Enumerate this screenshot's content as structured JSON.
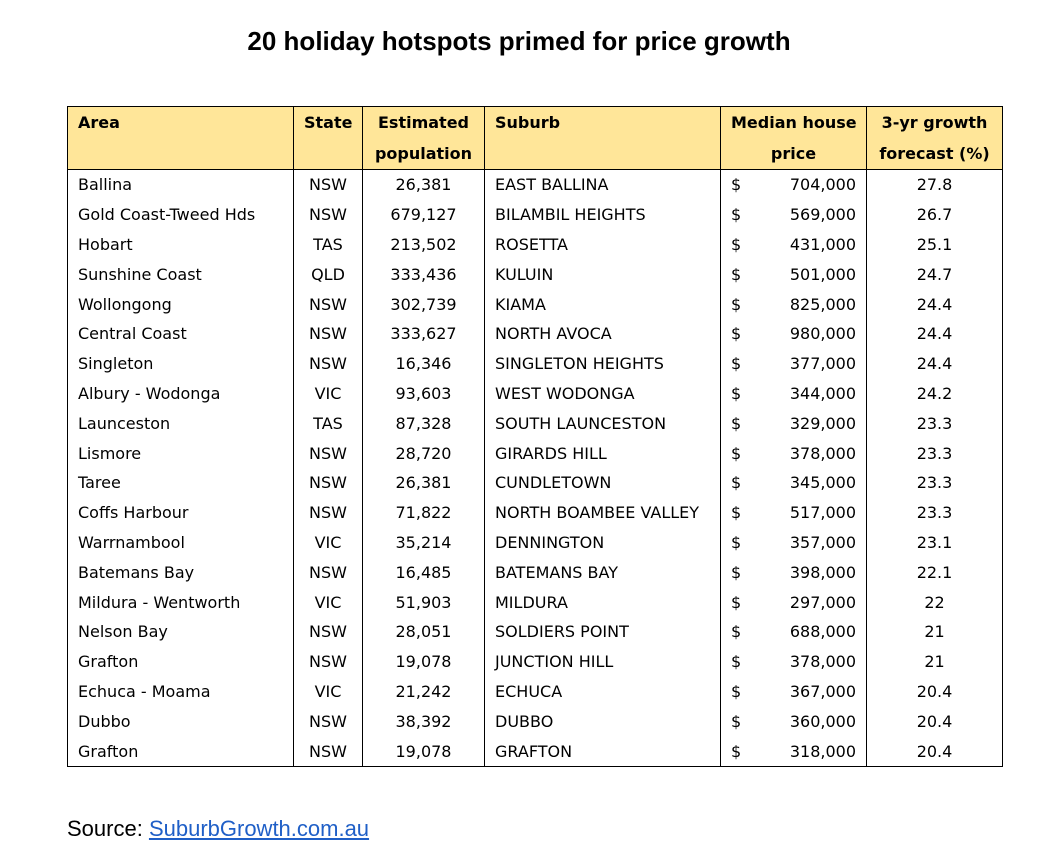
{
  "title": "20 holiday hotspots primed for price growth",
  "table": {
    "headers_row1": [
      "Area",
      "State",
      "Estimated",
      "Suburb",
      "Median house",
      "3-yr growth"
    ],
    "headers_row2": [
      "",
      "",
      "population",
      "",
      "price",
      "forecast (%)"
    ],
    "currency": "$",
    "rows": [
      {
        "area": "Ballina",
        "state": "NSW",
        "population": "26,381",
        "suburb": "EAST BALLINA",
        "price": "704,000",
        "growth": "27.8"
      },
      {
        "area": "Gold Coast-Tweed Hds",
        "state": "NSW",
        "population": "679,127",
        "suburb": "BILAMBIL HEIGHTS",
        "price": "569,000",
        "growth": "26.7"
      },
      {
        "area": "Hobart",
        "state": "TAS",
        "population": "213,502",
        "suburb": "ROSETTA",
        "price": "431,000",
        "growth": "25.1"
      },
      {
        "area": "Sunshine Coast",
        "state": "QLD",
        "population": "333,436",
        "suburb": "KULUIN",
        "price": "501,000",
        "growth": "24.7"
      },
      {
        "area": "Wollongong",
        "state": "NSW",
        "population": "302,739",
        "suburb": "KIAMA",
        "price": "825,000",
        "growth": "24.4"
      },
      {
        "area": "Central Coast",
        "state": "NSW",
        "population": "333,627",
        "suburb": "NORTH AVOCA",
        "price": "980,000",
        "growth": "24.4"
      },
      {
        "area": "Singleton",
        "state": "NSW",
        "population": "16,346",
        "suburb": "SINGLETON HEIGHTS",
        "price": "377,000",
        "growth": "24.4"
      },
      {
        "area": "Albury - Wodonga",
        "state": "VIC",
        "population": "93,603",
        "suburb": "WEST WODONGA",
        "price": "344,000",
        "growth": "24.2"
      },
      {
        "area": "Launceston",
        "state": "TAS",
        "population": "87,328",
        "suburb": "SOUTH LAUNCESTON",
        "price": "329,000",
        "growth": "23.3"
      },
      {
        "area": "Lismore",
        "state": "NSW",
        "population": "28,720",
        "suburb": "GIRARDS HILL",
        "price": "378,000",
        "growth": "23.3"
      },
      {
        "area": "Taree",
        "state": "NSW",
        "population": "26,381",
        "suburb": "CUNDLETOWN",
        "price": "345,000",
        "growth": "23.3"
      },
      {
        "area": "Coffs Harbour",
        "state": "NSW",
        "population": "71,822",
        "suburb": "NORTH BOAMBEE VALLEY",
        "price": "517,000",
        "growth": "23.3"
      },
      {
        "area": "Warrnambool",
        "state": "VIC",
        "population": "35,214",
        "suburb": "DENNINGTON",
        "price": "357,000",
        "growth": "23.1"
      },
      {
        "area": "Batemans Bay",
        "state": "NSW",
        "population": "16,485",
        "suburb": "BATEMANS BAY",
        "price": "398,000",
        "growth": "22.1"
      },
      {
        "area": "Mildura - Wentworth",
        "state": "VIC",
        "population": "51,903",
        "suburb": "MILDURA",
        "price": "297,000",
        "growth": "22"
      },
      {
        "area": "Nelson Bay",
        "state": "NSW",
        "population": "28,051",
        "suburb": "SOLDIERS POINT",
        "price": "688,000",
        "growth": "21"
      },
      {
        "area": "Grafton",
        "state": "NSW",
        "population": "19,078",
        "suburb": "JUNCTION HILL",
        "price": "378,000",
        "growth": "21"
      },
      {
        "area": "Echuca - Moama",
        "state": "VIC",
        "population": "21,242",
        "suburb": "ECHUCA",
        "price": "367,000",
        "growth": "20.4"
      },
      {
        "area": "Dubbo",
        "state": "NSW",
        "population": "38,392",
        "suburb": "DUBBO",
        "price": "360,000",
        "growth": "20.4"
      },
      {
        "area": "Grafton",
        "state": "NSW",
        "population": "19,078",
        "suburb": "GRAFTON",
        "price": "318,000",
        "growth": "20.4"
      }
    ]
  },
  "source": {
    "label": "Source: ",
    "link_text": "SuburbGrowth.com.au"
  }
}
